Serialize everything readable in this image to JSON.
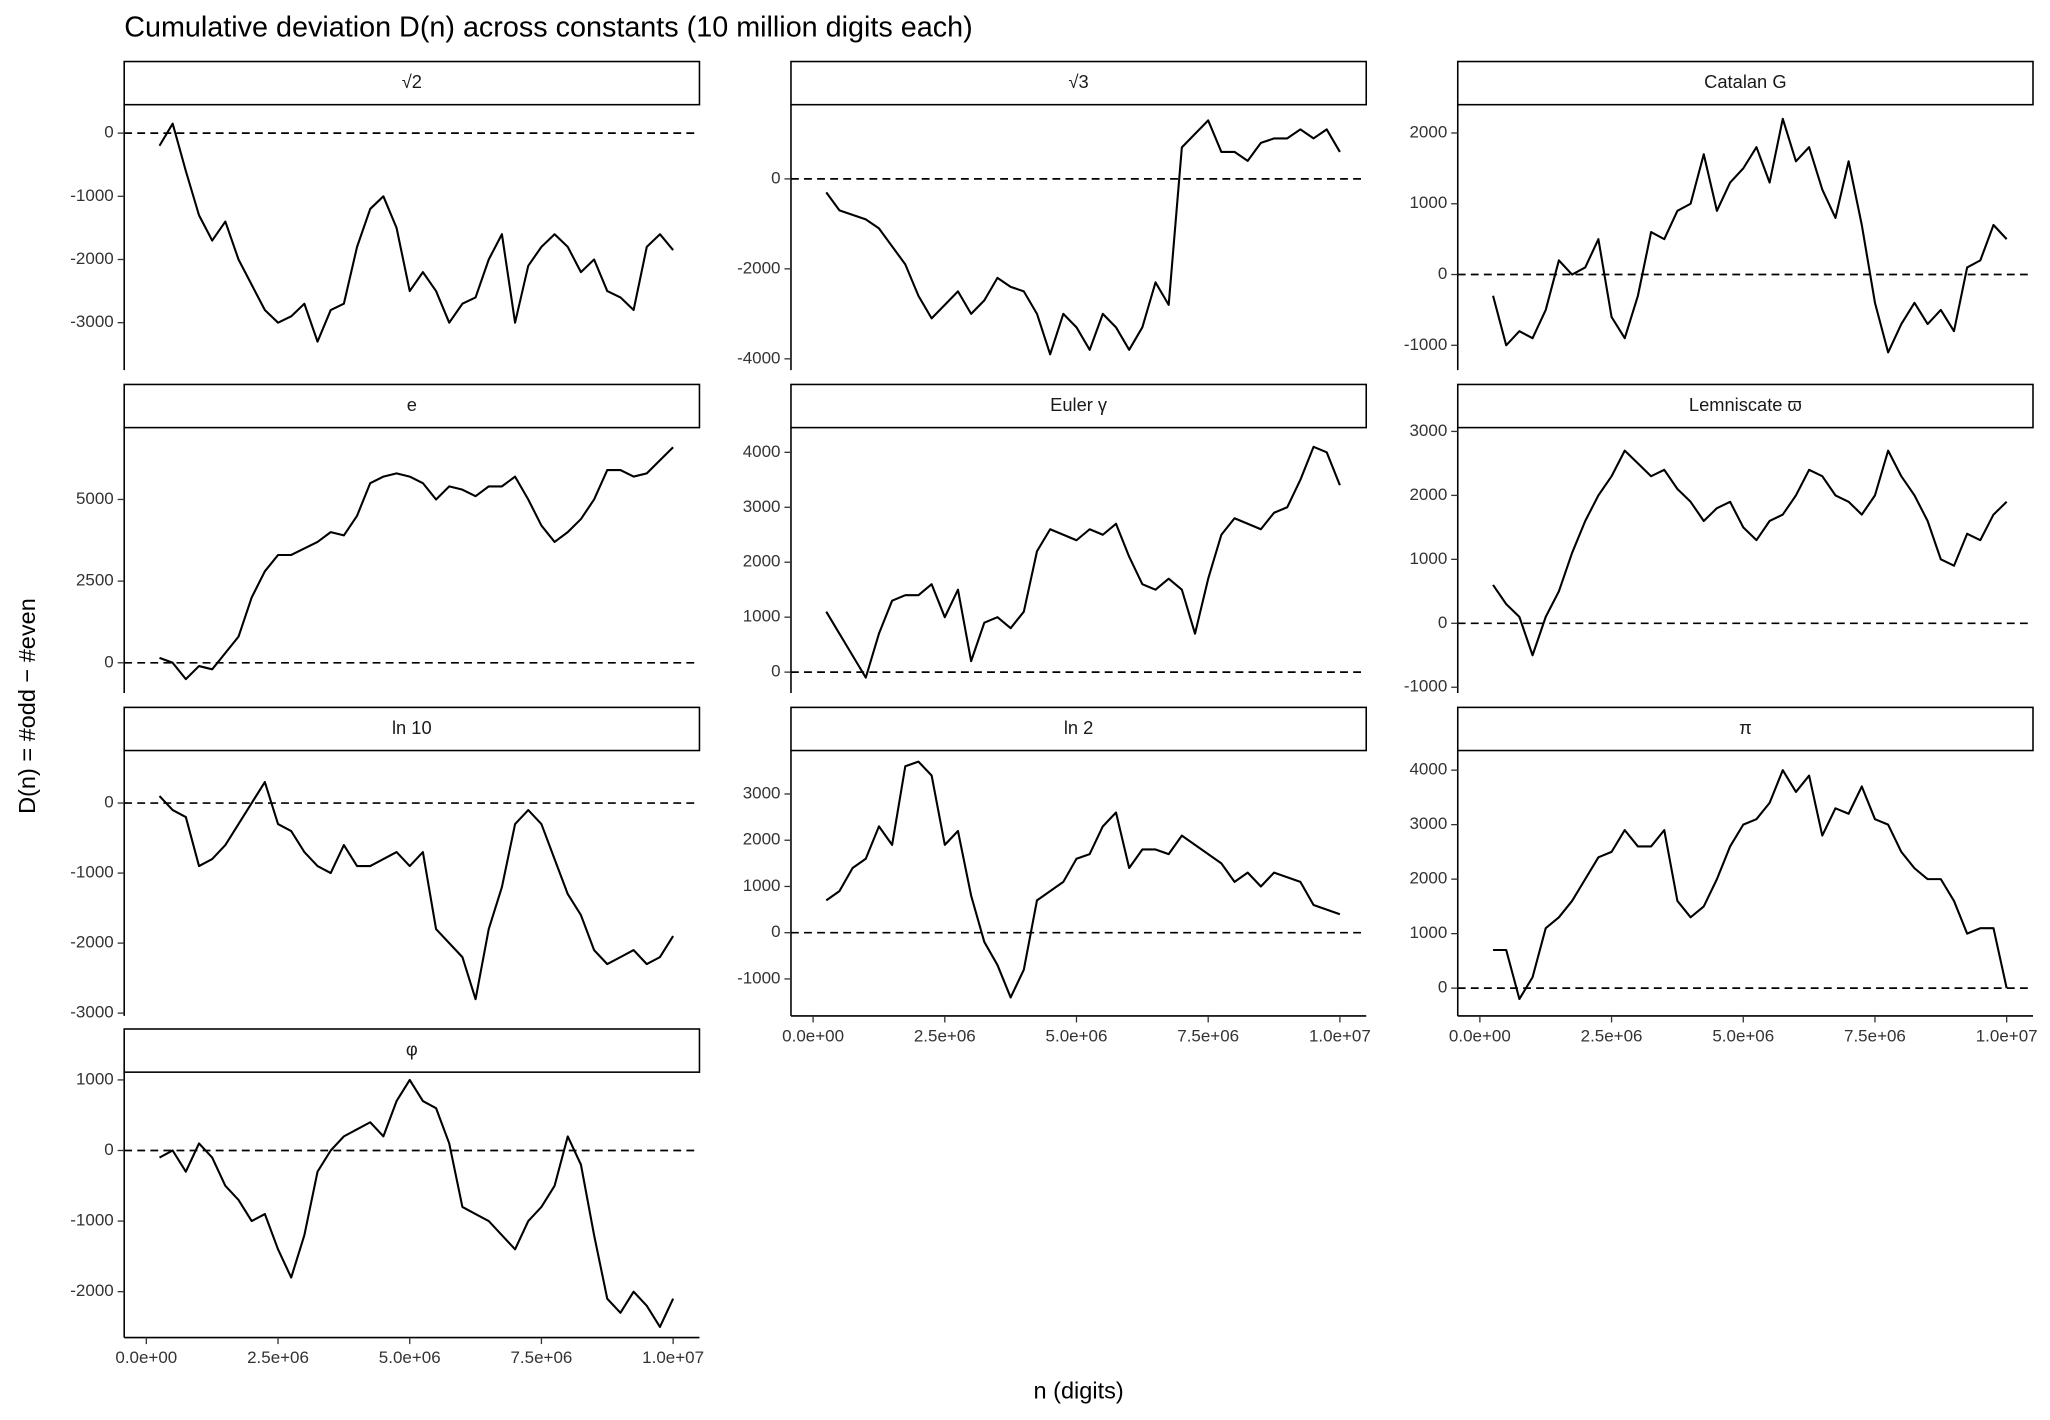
{
  "title": "Cumulative deviation D(n) across constants (10 million digits each)",
  "x_label": "n (digits)",
  "y_label": "D(n) = #odd − #even",
  "chart_data": [
    {
      "type": "line",
      "title": "√2",
      "color": "#000000",
      "hline": 0,
      "x": [
        250000,
        500000,
        750000,
        1000000,
        1250000,
        1500000,
        1750000,
        2000000,
        2250000,
        2500000,
        2750000,
        3000000,
        3250000,
        3500000,
        3750000,
        4000000,
        4250000,
        4500000,
        4750000,
        5000000,
        5250000,
        5500000,
        5750000,
        6000000,
        6250000,
        6500000,
        6750000,
        7000000,
        7250000,
        7500000,
        7750000,
        8000000,
        8250000,
        8500000,
        8750000,
        9000000,
        9250000,
        9500000,
        9750000,
        10000000
      ],
      "values": [
        -200,
        150,
        -600,
        -1300,
        -1700,
        -1400,
        -2000,
        -2400,
        -2800,
        -3000,
        -2900,
        -2700,
        -3300,
        -2800,
        -2700,
        -1800,
        -1200,
        -1000,
        -1500,
        -2500,
        -2200,
        -2500,
        -3000,
        -2700,
        -2600,
        -2000,
        -1600,
        -3000,
        -2100,
        -1800,
        -1600,
        -1800,
        -2200,
        -2000,
        -2500,
        -2600,
        -2800,
        -1800,
        -1600,
        -1850
      ],
      "xlim": [
        -420000,
        10500000
      ],
      "ylim": [
        -3750,
        450
      ],
      "yticks": [
        -3000,
        -2000,
        -1000,
        0
      ]
    },
    {
      "type": "line",
      "title": "√3",
      "color": "#000000",
      "hline": 0,
      "x": [
        250000,
        500000,
        750000,
        1000000,
        1250000,
        1500000,
        1750000,
        2000000,
        2250000,
        2500000,
        2750000,
        3000000,
        3250000,
        3500000,
        3750000,
        4000000,
        4250000,
        4500000,
        4750000,
        5000000,
        5250000,
        5500000,
        5750000,
        6000000,
        6250000,
        6500000,
        6750000,
        7000000,
        7250000,
        7500000,
        7750000,
        8000000,
        8250000,
        8500000,
        8750000,
        9000000,
        9250000,
        9500000,
        9750000,
        10000000
      ],
      "values": [
        -300,
        -700,
        -800,
        -900,
        -1100,
        -1500,
        -1900,
        -2600,
        -3100,
        -2800,
        -2500,
        -3000,
        -2700,
        -2200,
        -2400,
        -2500,
        -3000,
        -3900,
        -3000,
        -3300,
        -3800,
        -3000,
        -3300,
        -3800,
        -3300,
        -2300,
        -2800,
        700,
        1000,
        1300,
        600,
        600,
        400,
        800,
        900,
        900,
        1100,
        900,
        1100,
        600
      ],
      "xlim": [
        -420000,
        10500000
      ],
      "ylim": [
        -4250,
        1650
      ],
      "yticks": [
        -4000,
        -2000,
        0
      ]
    },
    {
      "type": "line",
      "title": "Catalan G",
      "color": "#000000",
      "hline": 0,
      "x": [
        250000,
        500000,
        750000,
        1000000,
        1250000,
        1500000,
        1750000,
        2000000,
        2250000,
        2500000,
        2750000,
        3000000,
        3250000,
        3500000,
        3750000,
        4000000,
        4250000,
        4500000,
        4750000,
        5000000,
        5250000,
        5500000,
        5750000,
        6000000,
        6250000,
        6500000,
        6750000,
        7000000,
        7250000,
        7500000,
        7750000,
        8000000,
        8250000,
        8500000,
        8750000,
        9000000,
        9250000,
        9500000,
        9750000,
        10000000
      ],
      "values": [
        -300,
        -1000,
        -800,
        -900,
        -500,
        200,
        0,
        100,
        500,
        -600,
        -900,
        -300,
        600,
        500,
        900,
        1000,
        1700,
        900,
        1300,
        1500,
        1800,
        1300,
        2200,
        1600,
        1800,
        1200,
        800,
        1600,
        700,
        -400,
        -1100,
        -700,
        -400,
        -700,
        -500,
        -800,
        100,
        200,
        700,
        500
      ],
      "xlim": [
        -420000,
        10500000
      ],
      "ylim": [
        -1350,
        2400
      ],
      "yticks": [
        -1000,
        0,
        1000,
        2000
      ]
    },
    {
      "type": "line",
      "title": "e",
      "color": "#000000",
      "hline": 0,
      "x": [
        250000,
        500000,
        750000,
        1000000,
        1250000,
        1500000,
        1750000,
        2000000,
        2250000,
        2500000,
        2750000,
        3000000,
        3250000,
        3500000,
        3750000,
        4000000,
        4250000,
        4500000,
        4750000,
        5000000,
        5250000,
        5500000,
        5750000,
        6000000,
        6250000,
        6500000,
        6750000,
        7000000,
        7250000,
        7500000,
        7750000,
        8000000,
        8250000,
        8500000,
        8750000,
        9000000,
        9250000,
        9500000,
        9750000,
        10000000
      ],
      "values": [
        150,
        0,
        -500,
        -100,
        -200,
        300,
        800,
        2000,
        2800,
        3300,
        3300,
        3500,
        3700,
        4000,
        3900,
        4500,
        5500,
        5700,
        5800,
        5700,
        5500,
        5000,
        5400,
        5300,
        5100,
        5400,
        5400,
        5700,
        5000,
        4200,
        3700,
        4000,
        4400,
        5000,
        5900,
        5900,
        5700,
        5800,
        6200,
        6600
      ],
      "xlim": [
        -420000,
        10500000
      ],
      "ylim": [
        -925,
        7200
      ],
      "yticks": [
        0,
        2500,
        5000
      ]
    },
    {
      "type": "line",
      "title": "Euler γ",
      "color": "#000000",
      "hline": 0,
      "x": [
        250000,
        500000,
        750000,
        1000000,
        1250000,
        1500000,
        1750000,
        2000000,
        2250000,
        2500000,
        2750000,
        3000000,
        3250000,
        3500000,
        3750000,
        4000000,
        4250000,
        4500000,
        4750000,
        5000000,
        5250000,
        5500000,
        5750000,
        6000000,
        6250000,
        6500000,
        6750000,
        7000000,
        7250000,
        7500000,
        7750000,
        8000000,
        8250000,
        8500000,
        8750000,
        9000000,
        9250000,
        9500000,
        9750000,
        10000000
      ],
      "values": [
        1100,
        700,
        300,
        -100,
        700,
        1300,
        1400,
        1400,
        1600,
        1000,
        1500,
        200,
        900,
        1000,
        800,
        1100,
        2200,
        2600,
        2500,
        2400,
        2600,
        2500,
        2700,
        2100,
        1600,
        1500,
        1700,
        1500,
        700,
        1700,
        2500,
        2800,
        2700,
        2600,
        2900,
        3000,
        3500,
        4100,
        4000,
        3400
      ],
      "xlim": [
        -420000,
        10500000
      ],
      "ylim": [
        -380,
        4450
      ],
      "yticks": [
        0,
        1000,
        2000,
        3000,
        4000
      ]
    },
    {
      "type": "line",
      "title": "Lemniscate ϖ",
      "color": "#000000",
      "hline": 0,
      "x": [
        250000,
        500000,
        750000,
        1000000,
        1250000,
        1500000,
        1750000,
        2000000,
        2250000,
        2500000,
        2750000,
        3000000,
        3250000,
        3500000,
        3750000,
        4000000,
        4250000,
        4500000,
        4750000,
        5000000,
        5250000,
        5500000,
        5750000,
        6000000,
        6250000,
        6500000,
        6750000,
        7000000,
        7250000,
        7500000,
        7750000,
        8000000,
        8250000,
        8500000,
        8750000,
        9000000,
        9250000,
        9500000,
        9750000,
        10000000
      ],
      "values": [
        600,
        300,
        100,
        -500,
        100,
        500,
        1100,
        1600,
        2000,
        2300,
        2700,
        2500,
        2300,
        2400,
        2100,
        1900,
        1600,
        1800,
        1900,
        1500,
        1300,
        1600,
        1700,
        2000,
        2400,
        2300,
        2000,
        1900,
        1700,
        2000,
        2700,
        2300,
        2000,
        1600,
        1000,
        900,
        1400,
        1300,
        1700,
        1900
      ],
      "xlim": [
        -420000,
        10500000
      ],
      "ylim": [
        -1090,
        3060
      ],
      "yticks": [
        -1000,
        0,
        1000,
        2000,
        3000
      ]
    },
    {
      "type": "line",
      "title": "ln 10",
      "color": "#000000",
      "hline": 0,
      "x": [
        250000,
        500000,
        750000,
        1000000,
        1250000,
        1500000,
        1750000,
        2000000,
        2250000,
        2500000,
        2750000,
        3000000,
        3250000,
        3500000,
        3750000,
        4000000,
        4250000,
        4500000,
        4750000,
        5000000,
        5250000,
        5500000,
        5750000,
        6000000,
        6250000,
        6500000,
        6750000,
        7000000,
        7250000,
        7500000,
        7750000,
        8000000,
        8250000,
        8500000,
        8750000,
        9000000,
        9250000,
        9500000,
        9750000,
        10000000
      ],
      "values": [
        100,
        -100,
        -200,
        -900,
        -800,
        -600,
        -300,
        0,
        300,
        -300,
        -400,
        -700,
        -900,
        -1000,
        -600,
        -900,
        -900,
        -800,
        -700,
        -900,
        -700,
        -1800,
        -2000,
        -2200,
        -2800,
        -1800,
        -1200,
        -300,
        -100,
        -300,
        -800,
        -1300,
        -1600,
        -2100,
        -2300,
        -2200,
        -2100,
        -2300,
        -2200,
        -1900
      ],
      "xlim": [
        -420000,
        10500000
      ],
      "ylim": [
        -3040,
        750
      ],
      "yticks": [
        -3000,
        -2000,
        -1000,
        0
      ]
    },
    {
      "type": "line",
      "title": "ln 2",
      "color": "#000000",
      "hline": 0,
      "x": [
        250000,
        500000,
        750000,
        1000000,
        1250000,
        1500000,
        1750000,
        2000000,
        2250000,
        2500000,
        2750000,
        3000000,
        3250000,
        3500000,
        3750000,
        4000000,
        4250000,
        4500000,
        4750000,
        5000000,
        5250000,
        5500000,
        5750000,
        6000000,
        6250000,
        6500000,
        6750000,
        7000000,
        7250000,
        7500000,
        7750000,
        8000000,
        8250000,
        8500000,
        8750000,
        9000000,
        9250000,
        9500000,
        9750000,
        10000000
      ],
      "values": [
        700,
        900,
        1400,
        1600,
        2300,
        1900,
        3600,
        3700,
        3400,
        1900,
        2200,
        800,
        -200,
        -700,
        -1400,
        -800,
        700,
        900,
        1100,
        1600,
        1700,
        2300,
        2600,
        1400,
        1800,
        1800,
        1700,
        2100,
        1900,
        1700,
        1500,
        1100,
        1300,
        1000,
        1300,
        1200,
        1100,
        600,
        500,
        400
      ],
      "xlim": [
        -420000,
        10500000
      ],
      "ylim": [
        -1800,
        3940
      ],
      "yticks": [
        -1000,
        0,
        1000,
        2000,
        3000
      ],
      "xticks": [
        {
          "value": 0,
          "label": "0.0e+00"
        },
        {
          "value": 2500000,
          "label": "2.5e+06"
        },
        {
          "value": 5000000,
          "label": "5.0e+06"
        },
        {
          "value": 7500000,
          "label": "7.5e+06"
        },
        {
          "value": 10000000,
          "label": "1.0e+07"
        }
      ]
    },
    {
      "type": "line",
      "title": "π",
      "color": "#000000",
      "hline": 0,
      "x": [
        250000,
        500000,
        750000,
        1000000,
        1250000,
        1500000,
        1750000,
        2000000,
        2250000,
        2500000,
        2750000,
        3000000,
        3250000,
        3500000,
        3750000,
        4000000,
        4250000,
        4500000,
        4750000,
        5000000,
        5250000,
        5500000,
        5750000,
        6000000,
        6250000,
        6500000,
        6750000,
        7000000,
        7250000,
        7500000,
        7750000,
        8000000,
        8250000,
        8500000,
        8750000,
        9000000,
        9250000,
        9500000,
        9750000,
        10000000
      ],
      "values": [
        700,
        700,
        -200,
        200,
        1100,
        1300,
        1600,
        2000,
        2400,
        2500,
        2900,
        2600,
        2600,
        2900,
        1600,
        1300,
        1500,
        2000,
        2600,
        3000,
        3100,
        3400,
        4000,
        3600,
        3900,
        2800,
        3300,
        3200,
        3700,
        3100,
        3000,
        2500,
        2200,
        2000,
        2000,
        1600,
        1000,
        1100,
        1100,
        0
      ],
      "xlim": [
        -420000,
        10500000
      ],
      "ylim": [
        -510,
        4360
      ],
      "yticks": [
        0,
        1000,
        2000,
        3000,
        4000
      ],
      "xticks": [
        {
          "value": 0,
          "label": "0.0e+00"
        },
        {
          "value": 2500000,
          "label": "2.5e+06"
        },
        {
          "value": 5000000,
          "label": "5.0e+06"
        },
        {
          "value": 7500000,
          "label": "7.5e+06"
        },
        {
          "value": 10000000,
          "label": "1.0e+07"
        }
      ]
    },
    {
      "type": "line",
      "title": "φ",
      "color": "#000000",
      "hline": 0,
      "x": [
        250000,
        500000,
        750000,
        1000000,
        1250000,
        1500000,
        1750000,
        2000000,
        2250000,
        2500000,
        2750000,
        3000000,
        3250000,
        3500000,
        3750000,
        4000000,
        4250000,
        4500000,
        4750000,
        5000000,
        5250000,
        5500000,
        5750000,
        6000000,
        6250000,
        6500000,
        6750000,
        7000000,
        7250000,
        7500000,
        7750000,
        8000000,
        8250000,
        8500000,
        8750000,
        9000000,
        9250000,
        9500000,
        9750000,
        10000000
      ],
      "values": [
        -100,
        0,
        -300,
        100,
        -100,
        -500,
        -700,
        -1000,
        -900,
        -1400,
        -1800,
        -1200,
        -300,
        0,
        200,
        300,
        400,
        200,
        700,
        1000,
        700,
        600,
        100,
        -800,
        -900,
        -1000,
        -1200,
        -1400,
        -1000,
        -800,
        -500,
        200,
        -200,
        -1200,
        -2100,
        -2300,
        -2000,
        -2200,
        -2500,
        -2100
      ],
      "xlim": [
        -420000,
        10500000
      ],
      "ylim": [
        -2650,
        1110
      ],
      "yticks": [
        -2000,
        -1000,
        0,
        1000
      ],
      "xticks": [
        {
          "value": 0,
          "label": "0.0e+00"
        },
        {
          "value": 2500000,
          "label": "2.5e+06"
        },
        {
          "value": 5000000,
          "label": "5.0e+06"
        },
        {
          "value": 7500000,
          "label": "7.5e+06"
        },
        {
          "value": 10000000,
          "label": "1.0e+07"
        }
      ]
    }
  ]
}
